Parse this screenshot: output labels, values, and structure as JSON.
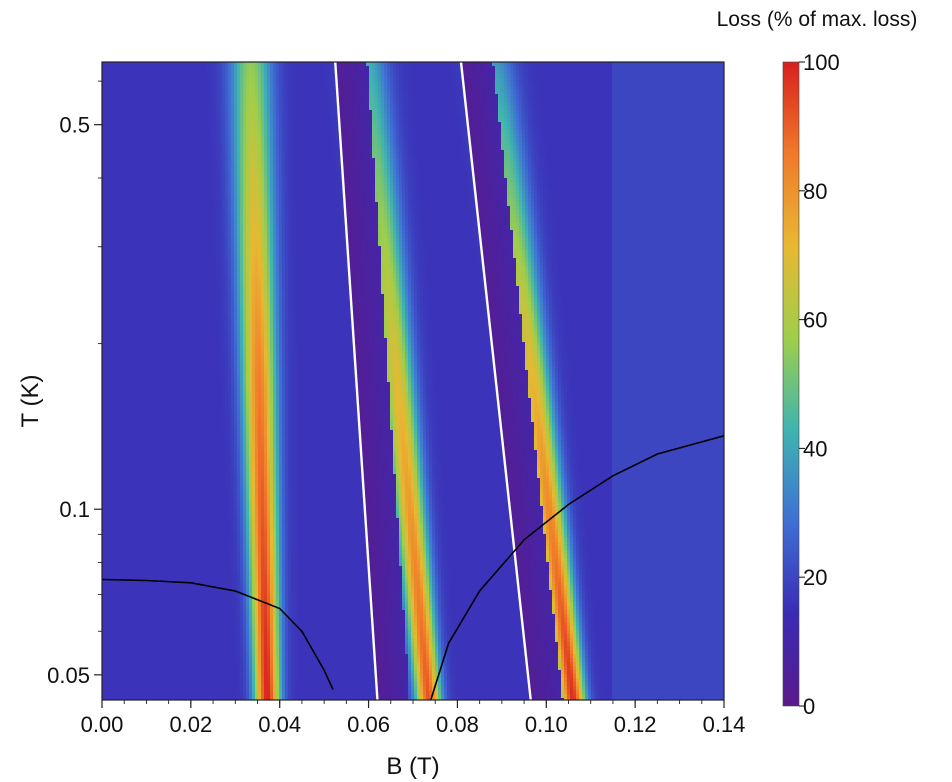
{
  "chart_data": {
    "type": "heatmap",
    "xlabel": "B (T)",
    "ylabel": "T (K)",
    "xlim": [
      0.0,
      0.14
    ],
    "ylim": [
      0.045,
      0.65
    ],
    "y_scale": "log",
    "x_ticks": [
      0.0,
      0.02,
      0.04,
      0.06,
      0.08,
      0.1,
      0.12,
      0.14
    ],
    "x_tick_labels": [
      "0.00",
      "0.02",
      "0.04",
      "0.06",
      "0.08",
      "0.10",
      "0.12",
      "0.14"
    ],
    "y_ticks": [
      0.05,
      0.1,
      0.5
    ],
    "y_tick_labels": [
      "0.05",
      "0.1",
      "0.5"
    ],
    "colorbar": {
      "title": "Loss (% of max. loss)",
      "range": [
        0,
        100
      ],
      "ticks": [
        0,
        20,
        40,
        60,
        80,
        100
      ],
      "tick_labels": [
        "0",
        "20",
        "40",
        "60",
        "80",
        "100"
      ],
      "colormap": [
        "#5a1a8c",
        "#3a2bb5",
        "#3f6fd4",
        "#3fb4b0",
        "#9fce4a",
        "#e8b832",
        "#f07a2a",
        "#d8201e"
      ]
    },
    "background_level": 16,
    "bands": [
      {
        "center_at_T_min": 0.0372,
        "center_at_T_max": 0.0335,
        "peak_loss": [
          100,
          85,
          55
        ]
      },
      {
        "center_at_T_min": 0.0735,
        "center_at_T_max": 0.0595,
        "peak_loss": [
          92,
          70,
          42
        ]
      },
      {
        "center_at_T_min": 0.106,
        "center_at_T_max": 0.088,
        "peak_loss": [
          98,
          72,
          38
        ]
      }
    ],
    "dark_stripes": [
      {
        "from": [
          0.0525,
          0.65
        ],
        "to": [
          0.062,
          0.045
        ],
        "level": 3
      },
      {
        "from": [
          0.0808,
          0.65
        ],
        "to": [
          0.0965,
          0.045
        ],
        "level": 3
      }
    ],
    "white_lines": [
      {
        "from": [
          0.0525,
          0.65
        ],
        "to": [
          0.062,
          0.045
        ]
      },
      {
        "from": [
          0.0808,
          0.65
        ],
        "to": [
          0.0965,
          0.045
        ]
      }
    ],
    "black_curves": [
      {
        "points": [
          [
            0.0,
            0.0745
          ],
          [
            0.01,
            0.0742
          ],
          [
            0.02,
            0.0735
          ],
          [
            0.03,
            0.071
          ],
          [
            0.04,
            0.066
          ],
          [
            0.045,
            0.06
          ],
          [
            0.05,
            0.051
          ],
          [
            0.052,
            0.047
          ]
        ]
      },
      {
        "points": [
          [
            0.074,
            0.045
          ],
          [
            0.078,
            0.057
          ],
          [
            0.085,
            0.071
          ],
          [
            0.095,
            0.088
          ],
          [
            0.105,
            0.102
          ],
          [
            0.115,
            0.115
          ],
          [
            0.125,
            0.126
          ],
          [
            0.14,
            0.136
          ]
        ]
      }
    ]
  }
}
